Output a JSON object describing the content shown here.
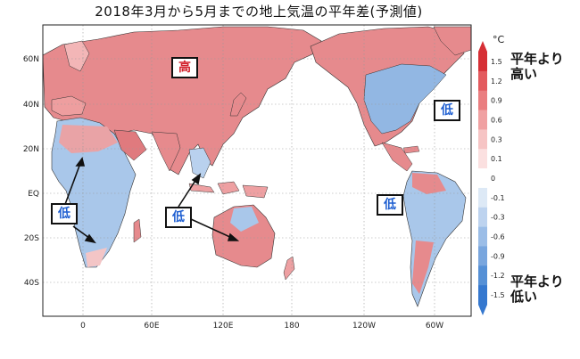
{
  "title": "2018年3月から5月までの地上気温の平年差(予測値)",
  "map": {
    "y_ticks": [
      "60N",
      "40N",
      "20N",
      "EQ",
      "20S",
      "40S"
    ],
    "x_ticks": [
      "0",
      "60E",
      "120E",
      "180",
      "120W",
      "60W"
    ],
    "land_color": "#ffffff",
    "grid_style": "dotted"
  },
  "colorbar": {
    "unit": "°C",
    "tick_labels": [
      "1.5",
      "1.2",
      "0.9",
      "0.6",
      "0.3",
      "0.1",
      "0",
      "-0.1",
      "-0.3",
      "-0.6",
      "-0.9",
      "-1.2",
      "-1.5"
    ],
    "colors": [
      "#d62f35",
      "#e35a5e",
      "#ea7e80",
      "#f0a1a2",
      "#f6c4c4",
      "#fbe0e0",
      "#ffffff",
      "#dde9f6",
      "#bdd3ef",
      "#9bbde7",
      "#79a6de",
      "#5590d6",
      "#3578cf"
    ],
    "high_label": "平年より高い",
    "low_label": "平年より低い"
  },
  "annotations": {
    "high": "高",
    "low_africa": "低",
    "low_australia": "低",
    "low_atlantic": "低",
    "low_pacific": "低"
  },
  "colors": {
    "warm": "#e4878a",
    "cool": "#8fb6e3"
  }
}
